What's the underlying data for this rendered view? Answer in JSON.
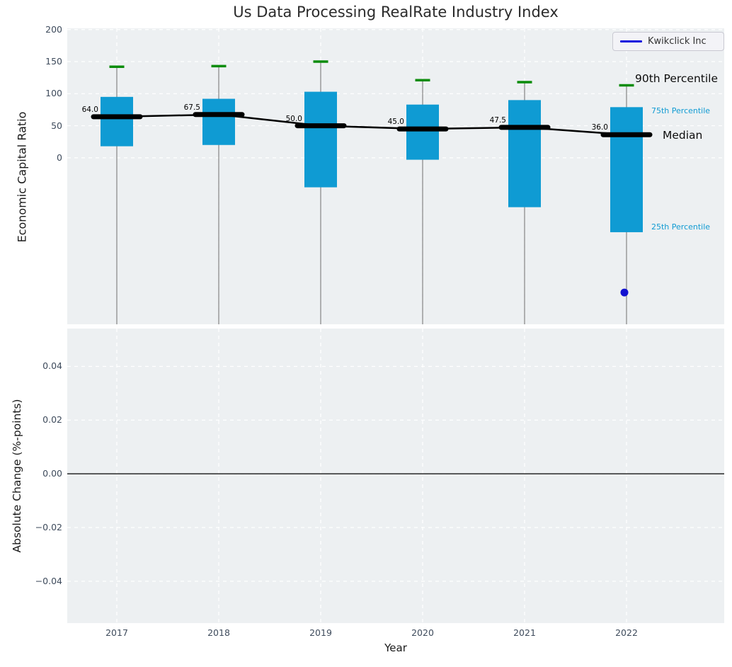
{
  "title": "Us Data Processing RealRate Industry Index",
  "legend": {
    "label": "Kwikclick Inc"
  },
  "right_labels": {
    "p90": "90th Percentile",
    "p75": "75th Percentile",
    "median": "Median",
    "p25": "25th Percentile"
  },
  "colors": {
    "box": "#0f9bd3",
    "cap_green": "#0a8c0a",
    "whisker": "#8c8c8c",
    "median_line": "#000000",
    "company_blue": "#1212d0",
    "legend_line_blue": "#1010dd",
    "axes_background": "#edf0f2",
    "grid": "#ffffff",
    "tick_text": "#3e4b5c",
    "percentile_text_blue": "#119bd3",
    "zero_line": "#000000"
  },
  "axes": {
    "top": {
      "ylabel": "Economic Capital Ratio",
      "ytick_labels": [
        "200",
        "150",
        "100",
        "50",
        "0"
      ],
      "ytick_values": [
        200,
        150,
        100,
        50,
        0
      ],
      "ylim": [
        -259.6,
        201.9
      ]
    },
    "bottom": {
      "ylabel": "Absolute Change (%-points)",
      "ytick_labels": [
        "0.04",
        "0.02",
        "0.00",
        "−0.02",
        "−0.04"
      ],
      "ytick_values": [
        0.04,
        0.02,
        0,
        -0.02,
        -0.04
      ],
      "ylim": [
        -0.0556,
        0.0541
      ],
      "zero_line_value": 0
    },
    "x": {
      "label": "Year",
      "categories": [
        "2017",
        "2018",
        "2019",
        "2020",
        "2021",
        "2022"
      ]
    }
  },
  "chart_data": {
    "type": "box",
    "title": "Us Data Processing RealRate Industry Index",
    "categories": [
      "2017",
      "2018",
      "2019",
      "2020",
      "2021",
      "2022"
    ],
    "boxes": [
      {
        "year": "2017",
        "p90": 142,
        "p75": 95,
        "median": 64,
        "p25": 18,
        "median_label": "64.0"
      },
      {
        "year": "2018",
        "p90": 143,
        "p75": 92,
        "median": 67.5,
        "p25": 20,
        "median_label": "67.5"
      },
      {
        "year": "2019",
        "p90": 150,
        "p75": 103,
        "median": 50,
        "p25": -46,
        "median_label": "50.0"
      },
      {
        "year": "2020",
        "p90": 121,
        "p75": 83,
        "median": 45,
        "p25": -3,
        "median_label": "45.0"
      },
      {
        "year": "2021",
        "p90": 118,
        "p75": 90,
        "median": 47.5,
        "p25": -77,
        "median_label": "47.5"
      },
      {
        "year": "2022",
        "p90": 113,
        "p75": 79,
        "median": 36,
        "p25": -116,
        "median_label": "36.0"
      }
    ],
    "median_series": {
      "name": "Industry Median",
      "values": [
        64,
        67.5,
        50,
        45,
        47.5,
        36
      ]
    },
    "company_series": {
      "name": "Kwikclick Inc",
      "points": [
        {
          "x": "2022",
          "y": -210
        }
      ]
    },
    "subplots": [
      {
        "ylabel": "Economic Capital Ratio",
        "ylim": [
          -259.6,
          201.9
        ],
        "yticks": [
          200,
          150,
          100,
          50,
          0
        ]
      },
      {
        "ylabel": "Absolute Change (%-points)",
        "ylim": [
          -0.0556,
          0.0541
        ],
        "yticks": [
          0.04,
          0.02,
          0,
          -0.02,
          -0.04
        ],
        "values": []
      }
    ],
    "layout": {
      "grid": true,
      "grid_style": "white-dashed",
      "legend_position": "upper-right",
      "whiskers_extend_below_plot": true
    }
  }
}
